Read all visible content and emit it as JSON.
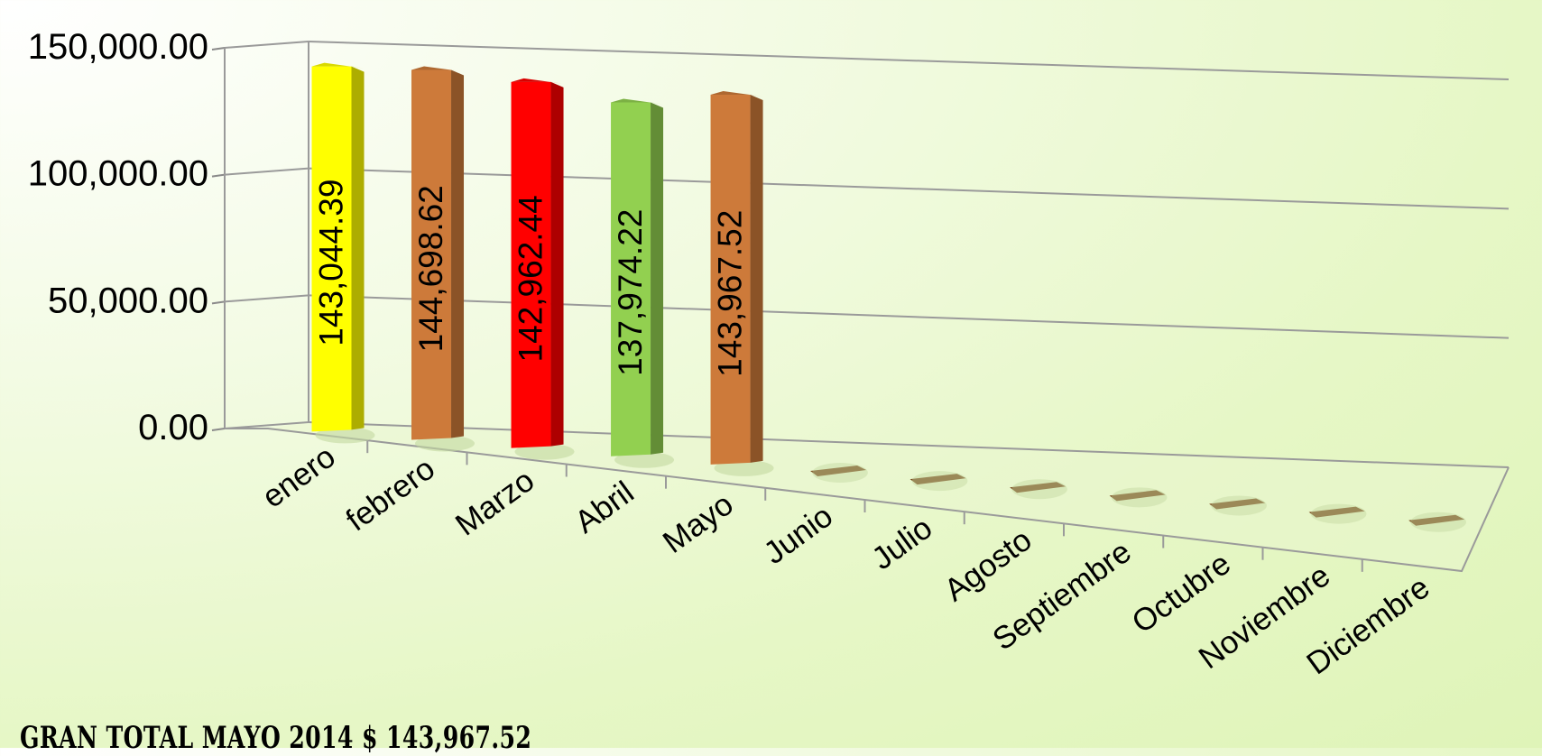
{
  "chart_data": {
    "type": "bar",
    "categories": [
      "enero",
      "febrero",
      "Marzo",
      "Abril",
      "Mayo",
      "Junio",
      "Julio",
      "Agosto",
      "Septiembre",
      "Octubre",
      "Noviembre",
      "Diciembre"
    ],
    "values": [
      143044.39,
      144698.62,
      142962.44,
      137974.22,
      143967.52,
      0,
      0,
      0,
      0,
      0,
      0,
      0
    ],
    "data_labels": [
      "143,044.39",
      "144,698.62",
      "142,962.44",
      "137,974.22",
      "143,967.52",
      "",
      "",
      "",
      "",
      "",
      "",
      ""
    ],
    "y_ticks": [
      {
        "value": 0,
        "label": "0.00"
      },
      {
        "value": 50000,
        "label": "50,000.00"
      },
      {
        "value": 100000,
        "label": "100,000.00"
      },
      {
        "value": 150000,
        "label": "150,000.00"
      }
    ],
    "ylim": [
      0,
      150000
    ],
    "grid": true,
    "legend": "none",
    "bar_colors": [
      "#ffff00",
      "#cd7a3a",
      "#ff0000",
      "#92d050",
      "#cd7a3a",
      "#7a4a1e",
      "#7a4a1e",
      "#7a4a1e",
      "#7a4a1e",
      "#7a4a1e",
      "#7a4a1e",
      "#7a4a1e"
    ]
  },
  "footer": {
    "total_text": "GRAN TOTAL  MAYO 2014 $ 143,967.52"
  }
}
